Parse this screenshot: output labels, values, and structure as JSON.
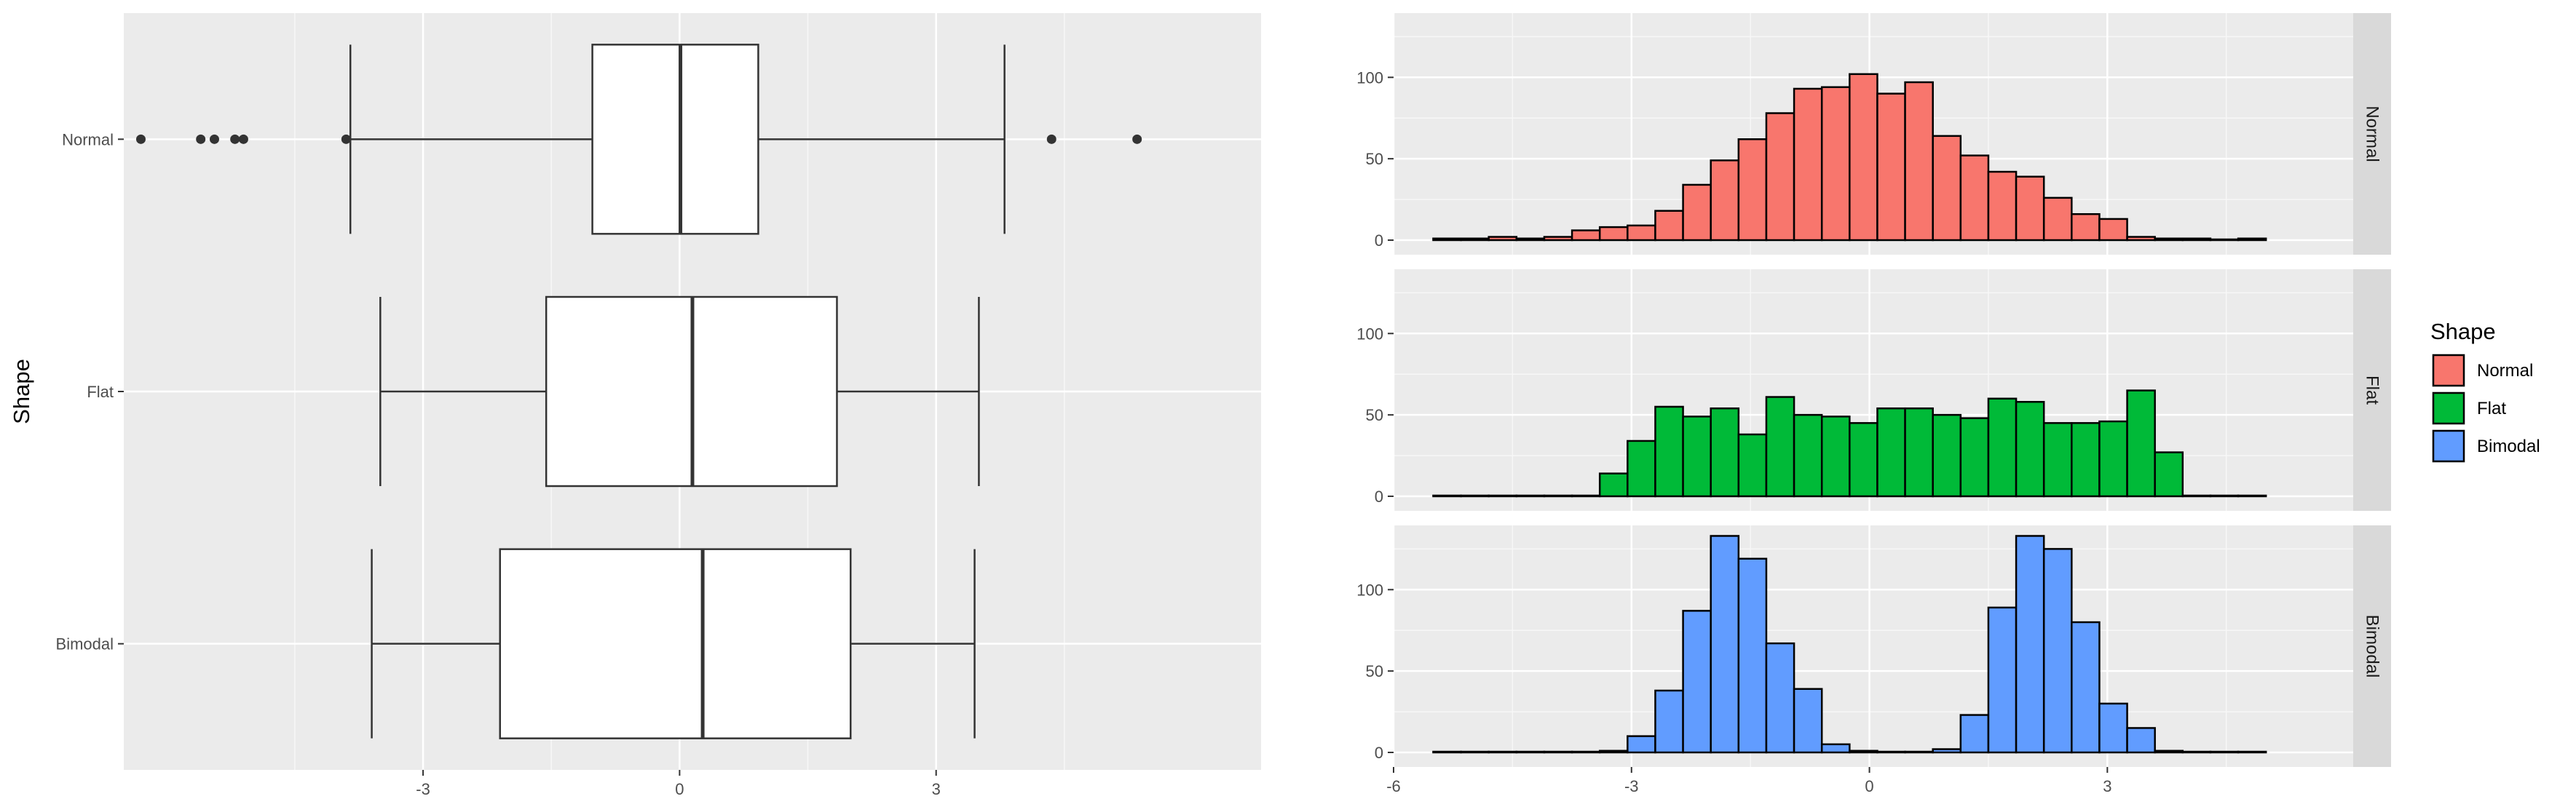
{
  "chart_data": [
    {
      "type": "boxplot",
      "orientation": "horizontal",
      "xlabel": "",
      "ylabel": "Shape",
      "xlim": [
        -6.5,
        6.8
      ],
      "x_ticks": [
        -3,
        0,
        3
      ],
      "x_tick_labels": [
        "-3",
        "0",
        "3"
      ],
      "categories": [
        "Normal",
        "Flat",
        "Bimodal"
      ],
      "boxes": [
        {
          "name": "Normal",
          "whisker_low": -3.85,
          "q1": -1.02,
          "median": 0.01,
          "q3": 0.92,
          "whisker_high": 3.8,
          "outliers": [
            -6.3,
            -5.6,
            -5.44,
            -5.2,
            -5.1,
            -3.9,
            4.35,
            5.35
          ]
        },
        {
          "name": "Flat",
          "whisker_low": -3.5,
          "q1": -1.56,
          "median": 0.15,
          "q3": 1.84,
          "whisker_high": 3.5,
          "outliers": []
        },
        {
          "name": "Bimodal",
          "whisker_low": -3.6,
          "q1": -2.1,
          "median": 0.27,
          "q3": 2.0,
          "whisker_high": 3.45,
          "outliers": []
        }
      ]
    },
    {
      "type": "histogram",
      "facets": [
        "Normal",
        "Flat",
        "Bimodal"
      ],
      "xlim": [
        -6,
        6.1
      ],
      "ylim": [
        0,
        135
      ],
      "x_ticks": [
        -6,
        -3,
        0,
        3
      ],
      "x_tick_labels": [
        "-6",
        "-3",
        "0",
        "3"
      ],
      "y_ticks": [
        0,
        50,
        100
      ],
      "y_tick_labels": [
        "0",
        "50",
        "100"
      ],
      "bin_start": -5.5,
      "bin_width": 0.35,
      "series": [
        {
          "name": "Normal",
          "color": "#F8766D",
          "values": [
            1,
            1,
            2,
            1,
            2,
            6,
            8,
            9,
            18,
            34,
            49,
            62,
            78,
            93,
            94,
            102,
            90,
            97,
            64,
            52,
            42,
            39,
            26,
            16,
            13,
            2,
            1,
            1,
            0,
            1
          ]
        },
        {
          "name": "Flat",
          "color": "#00BA38",
          "values": [
            0,
            0,
            0,
            0,
            0,
            0,
            14,
            34,
            55,
            49,
            54,
            38,
            61,
            50,
            49,
            45,
            54,
            54,
            50,
            48,
            60,
            58,
            45,
            45,
            46,
            65,
            27,
            0,
            0,
            0
          ]
        },
        {
          "name": "Bimodal",
          "color": "#619CFF",
          "values": [
            0,
            0,
            0,
            0,
            0,
            0,
            1,
            10,
            38,
            87,
            133,
            119,
            67,
            39,
            5,
            1,
            0,
            0,
            2,
            23,
            89,
            133,
            125,
            80,
            30,
            15,
            1,
            0,
            0,
            0
          ]
        }
      ],
      "legend": {
        "title": "Shape",
        "entries": [
          "Normal",
          "Flat",
          "Bimodal"
        ],
        "position": "right"
      }
    }
  ]
}
